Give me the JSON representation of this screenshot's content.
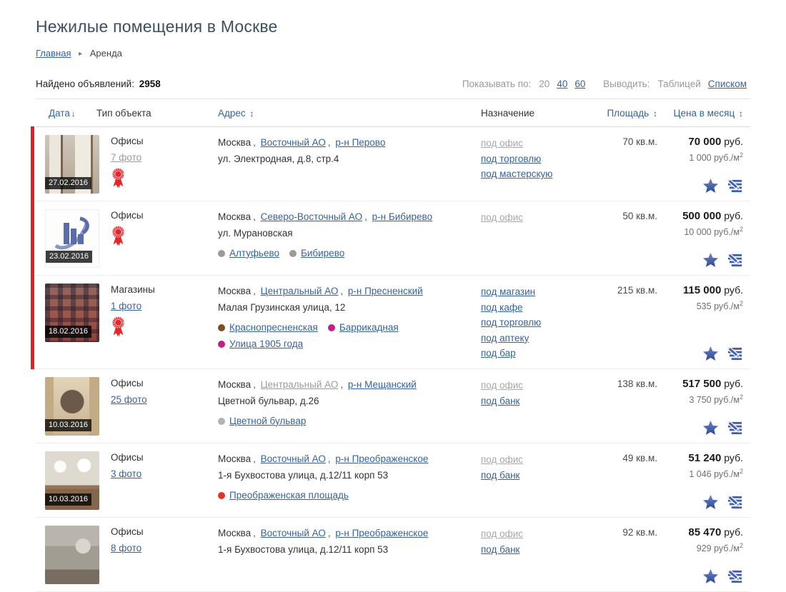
{
  "page": {
    "title": "Нежилые помещения в Москве",
    "breadcrumb": {
      "home": "Главная",
      "current": "Аренда"
    }
  },
  "toolbar": {
    "found_label": "Найдено объявлений:",
    "found_count": "2958",
    "per_page_label": "Показывать по:",
    "per_page_options": [
      {
        "label": "20",
        "active": true
      },
      {
        "label": "40",
        "active": false
      },
      {
        "label": "60",
        "active": false
      }
    ],
    "view_label": "Выводить:",
    "view_options": [
      {
        "label": "Таблицей",
        "active": true
      },
      {
        "label": "Списком",
        "active": false
      }
    ]
  },
  "labels": {
    "rub": "руб.",
    "per_m2": "руб./м",
    "sup2": "2",
    "comma": ","
  },
  "colors": {
    "accent_red": "#e31e24",
    "link_blue": "#35639f",
    "visited_gray": "#9b9b9b"
  },
  "table": {
    "headers": [
      {
        "label": "Дата",
        "sort_icon": "↓",
        "sortable": true
      },
      {
        "label": "Тип объекта",
        "sort_icon": "",
        "sortable": false
      },
      {
        "label": "Адрес",
        "sort_icon": "↕",
        "sortable": true
      },
      {
        "label": "Назначение",
        "sort_icon": "",
        "sortable": false
      },
      {
        "label": "Площадь",
        "sort_icon": "↕",
        "sortable": true
      },
      {
        "label": "Цена в месяц",
        "sort_icon": "↕",
        "sortable": true
      }
    ]
  },
  "listings": [
    {
      "date": "27.02.2016",
      "premium": true,
      "type": "Офисы",
      "photos": "7 фото",
      "photos_visited": true,
      "has_badge": true,
      "city": "Москва",
      "district": "Восточный АО",
      "district_visited": false,
      "area_link": "р-н Перово",
      "street": "ул. Электродная, д.8, стр.4",
      "metro": [],
      "purposes": [
        {
          "label": "под офис",
          "visited": true
        },
        {
          "label": "под торговлю",
          "visited": false
        },
        {
          "label": "под мастерскую",
          "visited": false
        }
      ],
      "area": "70 кв.м.",
      "price_value": "70 000",
      "price_per_m2": "1 000"
    },
    {
      "date": "23.02.2016",
      "premium": true,
      "type": "Офисы",
      "photos": "",
      "photos_visited": false,
      "has_badge": true,
      "city": "Москва",
      "district": "Северо-Восточный АО",
      "district_visited": false,
      "area_link": "р-н Бибирево",
      "street": "ул. Мурановская",
      "metro": [
        {
          "name": "Алтуфьево",
          "color": "#9a9a9a"
        },
        {
          "name": "Бибирево",
          "color": "#9a9a9a"
        }
      ],
      "purposes": [
        {
          "label": "под офис",
          "visited": true
        }
      ],
      "area": "50 кв.м.",
      "price_value": "500 000",
      "price_per_m2": "10 000"
    },
    {
      "date": "18.02.2016",
      "premium": true,
      "type": "Магазины",
      "photos": "1 фото",
      "photos_visited": false,
      "has_badge": true,
      "city": "Москва",
      "district": "Центральный АО",
      "district_visited": false,
      "area_link": "р-н Пресненский",
      "street": "Малая Грузинская улица, 12",
      "metro": [
        {
          "name": "Краснопресненская",
          "color": "#7d4e24"
        },
        {
          "name": "Баррикадная",
          "color": "#c01f8a"
        },
        {
          "name": "Улица 1905 года",
          "color": "#c01f8a"
        }
      ],
      "purposes": [
        {
          "label": "под магазин",
          "visited": false
        },
        {
          "label": "под кафе",
          "visited": false
        },
        {
          "label": "под торговлю",
          "visited": false
        },
        {
          "label": "под аптеку",
          "visited": false
        },
        {
          "label": "под бар",
          "visited": false
        }
      ],
      "area": "215 кв.м.",
      "price_value": "115 000",
      "price_per_m2": "535"
    },
    {
      "date": "10.03.2016",
      "premium": false,
      "type": "Офисы",
      "photos": "25 фото",
      "photos_visited": false,
      "has_badge": false,
      "city": "Москва",
      "district": "Центральный АО",
      "district_visited": true,
      "area_link": "р-н Мещанский",
      "street": "Цветной бульвар, д.26",
      "metro": [
        {
          "name": "Цветной бульвар",
          "color": "#b3b3b3"
        }
      ],
      "purposes": [
        {
          "label": "под офис",
          "visited": true
        },
        {
          "label": "под банк",
          "visited": false
        }
      ],
      "area": "138 кв.м.",
      "price_value": "517 500",
      "price_per_m2": "3 750"
    },
    {
      "date": "10.03.2016",
      "premium": false,
      "type": "Офисы",
      "photos": "3 фото",
      "photos_visited": false,
      "has_badge": false,
      "city": "Москва",
      "district": "Восточный АО",
      "district_visited": false,
      "area_link": "р-н Преображенское",
      "street": "1-я Бухвостова улица, д.12/11 корп 53",
      "metro": [
        {
          "name": "Преображенская площадь",
          "color": "#e63229"
        }
      ],
      "purposes": [
        {
          "label": "под офис",
          "visited": true
        },
        {
          "label": "под банк",
          "visited": false
        }
      ],
      "area": "49 кв.м.",
      "price_value": "51 240",
      "price_per_m2": "1 046"
    },
    {
      "date": "",
      "premium": false,
      "type": "Офисы",
      "photos": "8 фото",
      "photos_visited": false,
      "has_badge": false,
      "city": "Москва",
      "district": "Восточный АО",
      "district_visited": false,
      "area_link": "р-н Преображенское",
      "street": "1-я Бухвостова улица, д.12/11 корп 53",
      "metro": [],
      "purposes": [
        {
          "label": "под офис",
          "visited": true
        },
        {
          "label": "под банк",
          "visited": false
        }
      ],
      "area": "92 кв.м.",
      "price_value": "85 470",
      "price_per_m2": "929"
    }
  ]
}
